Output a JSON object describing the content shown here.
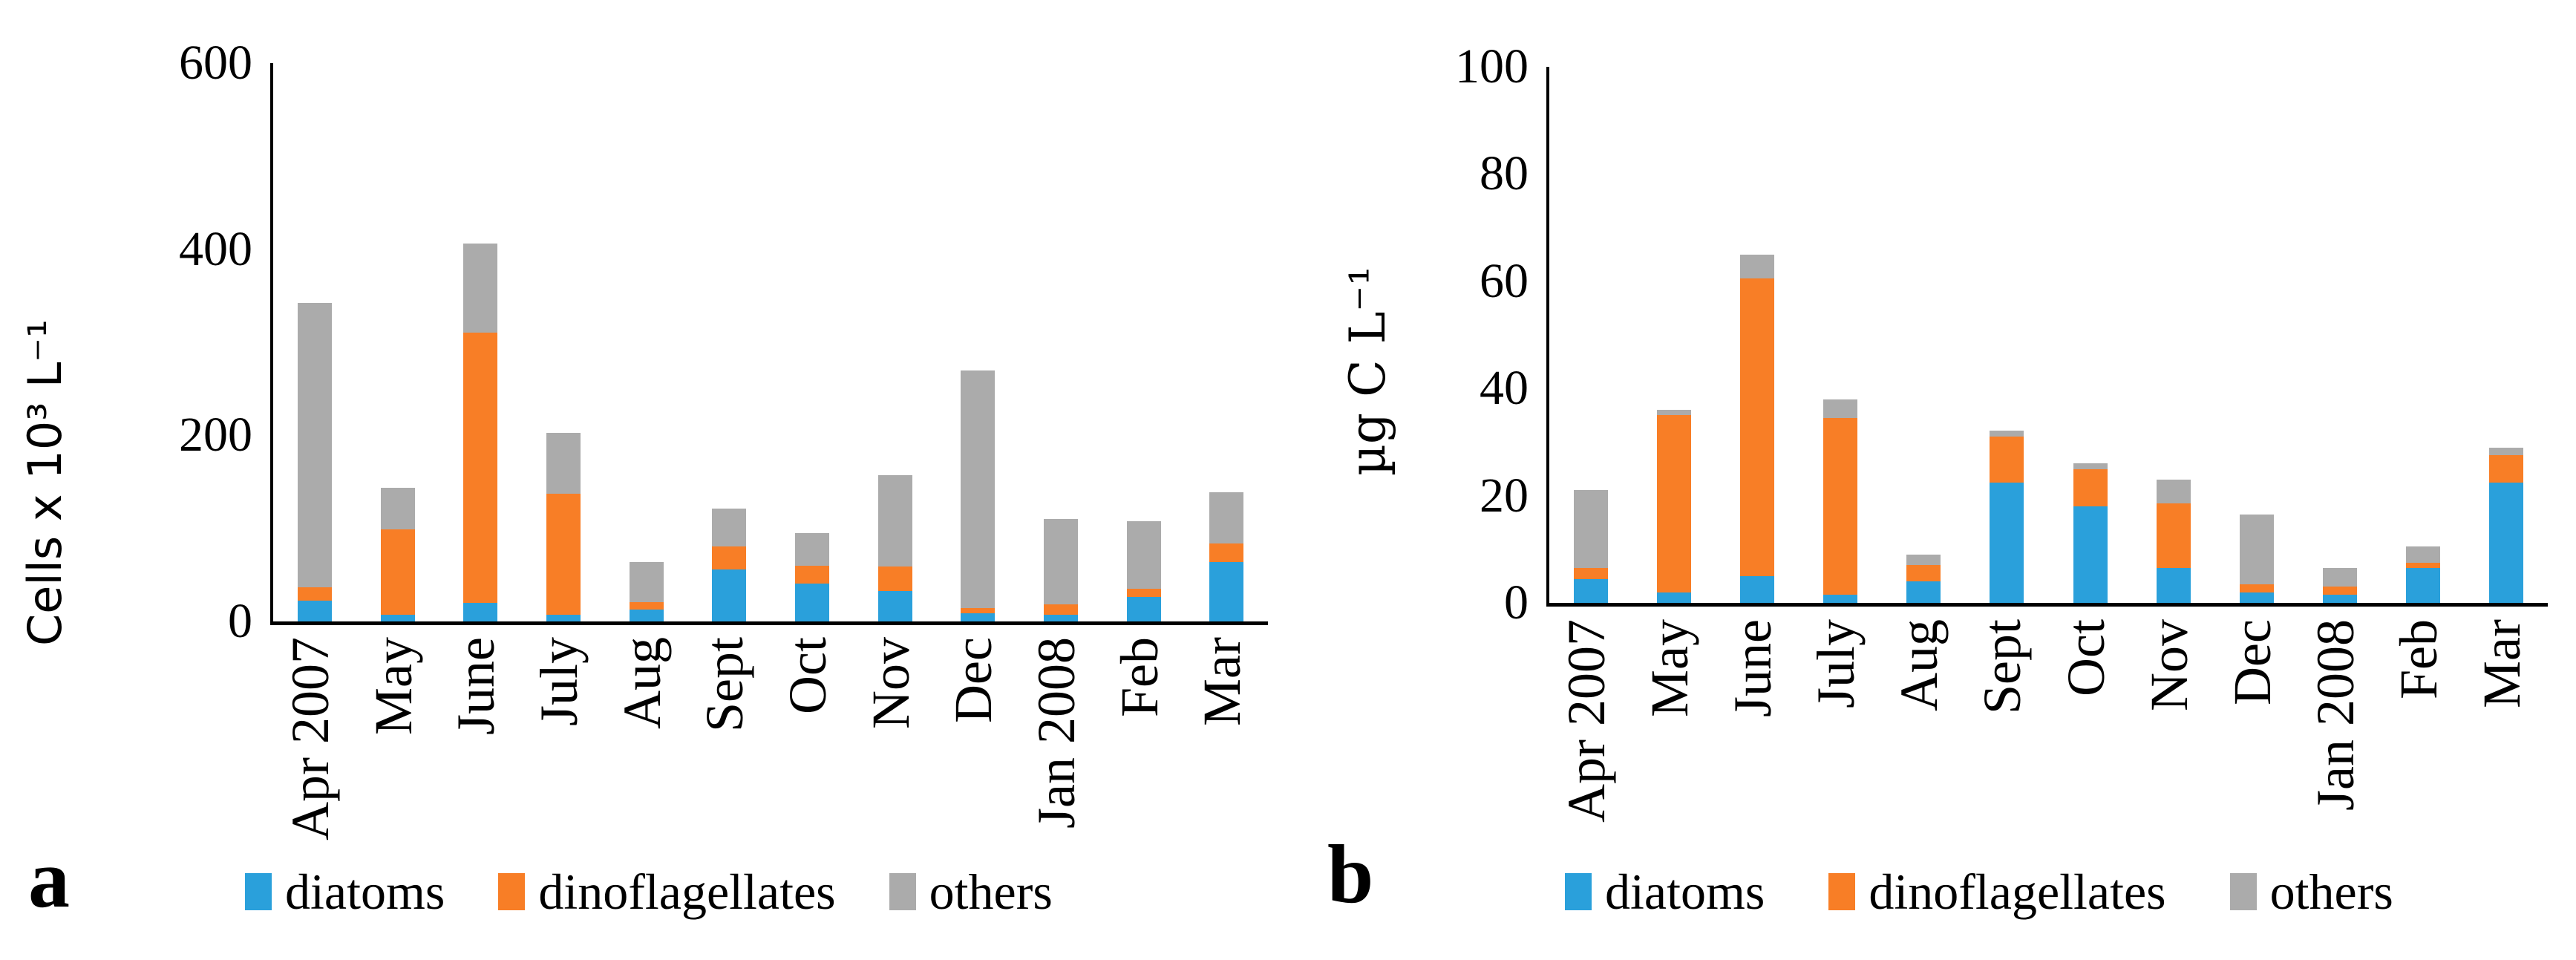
{
  "figure_title": "",
  "colors": {
    "diatoms": "#2AA0DB",
    "dinoflagellates": "#F87E26",
    "others": "#ABABAB",
    "axis": "#000000",
    "text": "#000000",
    "background": "#FFFFFF"
  },
  "legend": {
    "items": [
      {
        "label": "diatoms",
        "color": "#2AA0DB"
      },
      {
        "label": "dinoflagellates",
        "color": "#F87E26"
      },
      {
        "label": "others",
        "color": "#ABABAB"
      }
    ]
  },
  "chart_data": [
    {
      "type": "bar",
      "stacked": true,
      "panel_letter": "a",
      "ylabel": "Cells x 10³ L⁻¹",
      "ylim": [
        0,
        600
      ],
      "yticks": [
        0,
        200,
        400,
        600
      ],
      "grid": false,
      "legend_position": "bottom",
      "categories": [
        "Apr 2007",
        "May",
        "June",
        "July",
        "Aug",
        "Sept",
        "Oct",
        "Nov",
        "Dec",
        "Jan 2008",
        "Feb",
        "Mar"
      ],
      "series": [
        {
          "name": "diatoms",
          "values": [
            22,
            7,
            20,
            7,
            13,
            56,
            41,
            33,
            9,
            7,
            26,
            64
          ]
        },
        {
          "name": "dinoflagellates",
          "values": [
            15,
            92,
            290,
            130,
            8,
            25,
            19,
            26,
            5,
            11,
            9,
            20
          ]
        },
        {
          "name": "others",
          "values": [
            305,
            45,
            96,
            66,
            43,
            40,
            35,
            98,
            256,
            92,
            73,
            55
          ]
        }
      ]
    },
    {
      "type": "bar",
      "stacked": true,
      "panel_letter": "b",
      "ylabel": "µg C L⁻¹",
      "ylim": [
        0,
        100
      ],
      "yticks": [
        0,
        20,
        40,
        60,
        80,
        100
      ],
      "grid": false,
      "legend_position": "bottom",
      "categories": [
        "Apr 2007",
        "May",
        "June",
        "July",
        "Aug",
        "Sept",
        "Oct",
        "Nov",
        "Dec",
        "Jan 2008",
        "Feb",
        "Mar"
      ],
      "series": [
        {
          "name": "diatoms",
          "values": [
            4.5,
            2,
            5,
            1.5,
            4,
            22.5,
            18,
            6.5,
            2,
            1.5,
            6.5,
            22.5
          ]
        },
        {
          "name": "dinoflagellates",
          "values": [
            2,
            33,
            55.5,
            33,
            3,
            8.5,
            7,
            12,
            1.5,
            1.5,
            1,
            5
          ]
        },
        {
          "name": "others",
          "values": [
            14.5,
            1,
            4.5,
            3.5,
            2,
            1.2,
            1,
            4.5,
            13,
            3.5,
            3,
            1.5
          ]
        }
      ]
    }
  ]
}
